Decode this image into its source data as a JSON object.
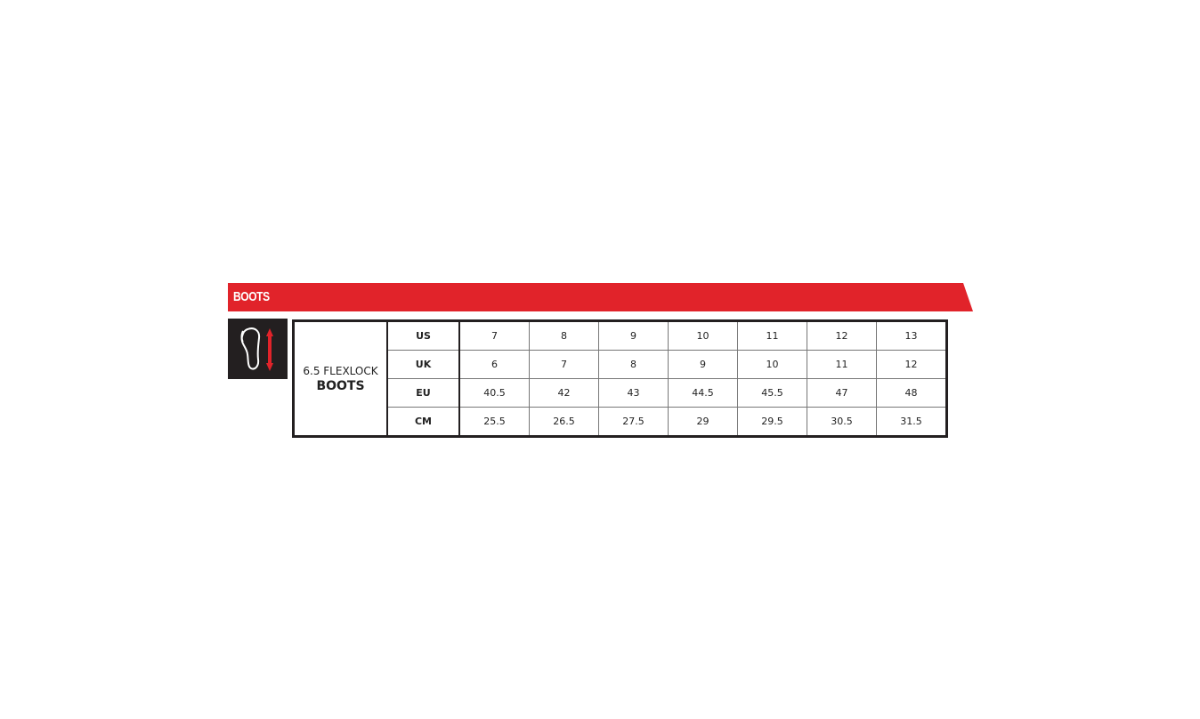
{
  "banner": {
    "title": "BOOTS",
    "color": "#e1232a"
  },
  "icon": "foot-length-icon",
  "product": {
    "line1": "6.5 FLEXLOCK",
    "line2": "BOOTS"
  },
  "rows": [
    {
      "label": "US",
      "values": [
        "7",
        "8",
        "9",
        "10",
        "11",
        "12",
        "13"
      ]
    },
    {
      "label": "UK",
      "values": [
        "6",
        "7",
        "8",
        "9",
        "10",
        "11",
        "12"
      ]
    },
    {
      "label": "EU",
      "values": [
        "40.5",
        "42",
        "43",
        "44.5",
        "45.5",
        "47",
        "48"
      ]
    },
    {
      "label": "CM",
      "values": [
        "25.5",
        "26.5",
        "27.5",
        "29",
        "29.5",
        "30.5",
        "31.5"
      ]
    }
  ]
}
